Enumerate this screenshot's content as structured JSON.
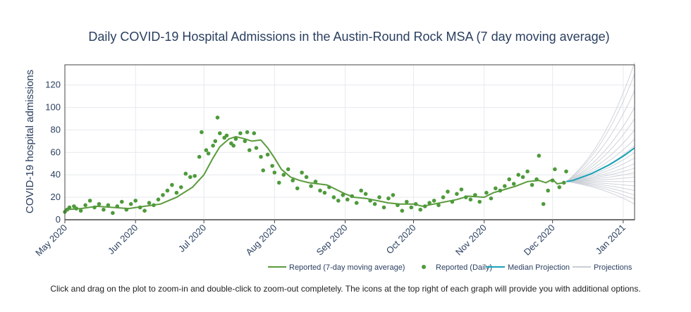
{
  "chart_data": {
    "type": "line",
    "title": "Daily COVID-19 Hospital Admissions in the Austin-Round Rock MSA (7 day moving average)",
    "ylabel": "COVID-19 hospital admissions",
    "xlabel": "",
    "x_ticks": [
      "2020-05-01",
      "2020-06-01",
      "2020-07-01",
      "2020-08-01",
      "2020-09-01",
      "2020-10-01",
      "2020-11-01",
      "2020-12-01",
      "2021-01-01"
    ],
    "x_tick_labels": [
      "May 2020",
      "Jun 2020",
      "Jul 2020",
      "Aug 2020",
      "Sep 2020",
      "Oct 2020",
      "Nov 2020",
      "Dec 2020",
      "Jan 2021"
    ],
    "xlim": [
      "2020-05-01",
      "2021-01-06"
    ],
    "y_ticks": [
      0,
      20,
      40,
      60,
      80,
      100,
      120
    ],
    "ylim": [
      0,
      138
    ],
    "grid": true,
    "legend_position": "bottom-right",
    "colors": {
      "moving_average": "#5a9b3c",
      "daily": "#4e9a3b",
      "median": "#17a2b8",
      "projections": "#c8cdd3"
    },
    "series": [
      {
        "name": "Reported (7-day moving average)",
        "type": "line",
        "points": [
          [
            "2020-05-01",
            9
          ],
          [
            "2020-05-08",
            10
          ],
          [
            "2020-05-15",
            12
          ],
          [
            "2020-05-22",
            11
          ],
          [
            "2020-05-29",
            10
          ],
          [
            "2020-06-05",
            12
          ],
          [
            "2020-06-12",
            14
          ],
          [
            "2020-06-19",
            20
          ],
          [
            "2020-06-26",
            29
          ],
          [
            "2020-07-01",
            40
          ],
          [
            "2020-07-05",
            55
          ],
          [
            "2020-07-08",
            65
          ],
          [
            "2020-07-12",
            72
          ],
          [
            "2020-07-15",
            74
          ],
          [
            "2020-07-19",
            72
          ],
          [
            "2020-07-22",
            70
          ],
          [
            "2020-07-26",
            71
          ],
          [
            "2020-07-29",
            64
          ],
          [
            "2020-08-01",
            55
          ],
          [
            "2020-08-04",
            45
          ],
          [
            "2020-08-08",
            38
          ],
          [
            "2020-08-12",
            35
          ],
          [
            "2020-08-16",
            33
          ],
          [
            "2020-08-20",
            32
          ],
          [
            "2020-08-24",
            31
          ],
          [
            "2020-08-28",
            27
          ],
          [
            "2020-09-01",
            23
          ],
          [
            "2020-09-05",
            20
          ],
          [
            "2020-09-10",
            19
          ],
          [
            "2020-09-15",
            17
          ],
          [
            "2020-09-20",
            15
          ],
          [
            "2020-09-25",
            14
          ],
          [
            "2020-10-01",
            14
          ],
          [
            "2020-10-05",
            12
          ],
          [
            "2020-10-10",
            14
          ],
          [
            "2020-10-15",
            16
          ],
          [
            "2020-10-20",
            18
          ],
          [
            "2020-10-25",
            21
          ],
          [
            "2020-11-01",
            20
          ],
          [
            "2020-11-05",
            24
          ],
          [
            "2020-11-10",
            27
          ],
          [
            "2020-11-15",
            30
          ],
          [
            "2020-11-20",
            34
          ],
          [
            "2020-11-25",
            35
          ],
          [
            "2020-11-28",
            33
          ],
          [
            "2020-12-01",
            36
          ],
          [
            "2020-12-03",
            32
          ],
          [
            "2020-12-06",
            33
          ]
        ]
      },
      {
        "name": "Reported (Daily)",
        "type": "scatter",
        "points": [
          [
            "2020-05-01",
            7
          ],
          [
            "2020-05-02",
            9
          ],
          [
            "2020-05-03",
            11
          ],
          [
            "2020-05-05",
            12
          ],
          [
            "2020-05-06",
            10
          ],
          [
            "2020-05-08",
            8
          ],
          [
            "2020-05-10",
            13
          ],
          [
            "2020-05-12",
            17
          ],
          [
            "2020-05-14",
            11
          ],
          [
            "2020-05-16",
            14
          ],
          [
            "2020-05-18",
            9
          ],
          [
            "2020-05-20",
            13
          ],
          [
            "2020-05-22",
            6
          ],
          [
            "2020-05-24",
            12
          ],
          [
            "2020-05-26",
            16
          ],
          [
            "2020-05-28",
            9
          ],
          [
            "2020-05-30",
            14
          ],
          [
            "2020-06-01",
            17
          ],
          [
            "2020-06-03",
            11
          ],
          [
            "2020-06-05",
            8
          ],
          [
            "2020-06-07",
            15
          ],
          [
            "2020-06-09",
            13
          ],
          [
            "2020-06-11",
            18
          ],
          [
            "2020-06-13",
            22
          ],
          [
            "2020-06-15",
            26
          ],
          [
            "2020-06-17",
            31
          ],
          [
            "2020-06-19",
            24
          ],
          [
            "2020-06-21",
            29
          ],
          [
            "2020-06-23",
            41
          ],
          [
            "2020-06-25",
            38
          ],
          [
            "2020-06-27",
            39
          ],
          [
            "2020-06-29",
            56
          ],
          [
            "2020-06-30",
            78
          ],
          [
            "2020-07-02",
            62
          ],
          [
            "2020-07-03",
            59
          ],
          [
            "2020-07-05",
            66
          ],
          [
            "2020-07-06",
            70
          ],
          [
            "2020-07-07",
            91
          ],
          [
            "2020-07-08",
            77
          ],
          [
            "2020-07-10",
            73
          ],
          [
            "2020-07-11",
            75
          ],
          [
            "2020-07-13",
            68
          ],
          [
            "2020-07-14",
            66
          ],
          [
            "2020-07-15",
            72
          ],
          [
            "2020-07-17",
            77
          ],
          [
            "2020-07-19",
            70
          ],
          [
            "2020-07-20",
            78
          ],
          [
            "2020-07-21",
            62
          ],
          [
            "2020-07-23",
            77
          ],
          [
            "2020-07-24",
            64
          ],
          [
            "2020-07-26",
            56
          ],
          [
            "2020-07-27",
            44
          ],
          [
            "2020-07-29",
            58
          ],
          [
            "2020-07-31",
            48
          ],
          [
            "2020-08-01",
            42
          ],
          [
            "2020-08-03",
            33
          ],
          [
            "2020-08-05",
            40
          ],
          [
            "2020-08-07",
            45
          ],
          [
            "2020-08-09",
            35
          ],
          [
            "2020-08-11",
            28
          ],
          [
            "2020-08-13",
            42
          ],
          [
            "2020-08-15",
            38
          ],
          [
            "2020-08-17",
            30
          ],
          [
            "2020-08-19",
            34
          ],
          [
            "2020-08-21",
            26
          ],
          [
            "2020-08-23",
            24
          ],
          [
            "2020-08-25",
            29
          ],
          [
            "2020-08-27",
            20
          ],
          [
            "2020-08-29",
            17
          ],
          [
            "2020-08-31",
            22
          ],
          [
            "2020-09-02",
            18
          ],
          [
            "2020-09-04",
            21
          ],
          [
            "2020-09-06",
            15
          ],
          [
            "2020-09-08",
            26
          ],
          [
            "2020-09-10",
            23
          ],
          [
            "2020-09-12",
            17
          ],
          [
            "2020-09-14",
            14
          ],
          [
            "2020-09-16",
            20
          ],
          [
            "2020-09-18",
            11
          ],
          [
            "2020-09-20",
            19
          ],
          [
            "2020-09-22",
            22
          ],
          [
            "2020-09-24",
            13
          ],
          [
            "2020-09-26",
            8
          ],
          [
            "2020-09-28",
            16
          ],
          [
            "2020-09-30",
            11
          ],
          [
            "2020-10-02",
            14
          ],
          [
            "2020-10-04",
            9
          ],
          [
            "2020-10-06",
            12
          ],
          [
            "2020-10-08",
            15
          ],
          [
            "2020-10-10",
            17
          ],
          [
            "2020-10-12",
            13
          ],
          [
            "2020-10-14",
            20
          ],
          [
            "2020-10-16",
            25
          ],
          [
            "2020-10-18",
            16
          ],
          [
            "2020-10-20",
            23
          ],
          [
            "2020-10-22",
            27
          ],
          [
            "2020-10-24",
            20
          ],
          [
            "2020-10-26",
            18
          ],
          [
            "2020-10-28",
            22
          ],
          [
            "2020-10-30",
            16
          ],
          [
            "2020-11-02",
            24
          ],
          [
            "2020-11-04",
            19
          ],
          [
            "2020-11-06",
            28
          ],
          [
            "2020-11-08",
            26
          ],
          [
            "2020-11-10",
            30
          ],
          [
            "2020-11-12",
            36
          ],
          [
            "2020-11-14",
            32
          ],
          [
            "2020-11-16",
            40
          ],
          [
            "2020-11-18",
            38
          ],
          [
            "2020-11-20",
            43
          ],
          [
            "2020-11-22",
            31
          ],
          [
            "2020-11-24",
            36
          ],
          [
            "2020-11-25",
            57
          ],
          [
            "2020-11-27",
            14
          ],
          [
            "2020-11-29",
            26
          ],
          [
            "2020-12-01",
            35
          ],
          [
            "2020-12-02",
            45
          ],
          [
            "2020-12-04",
            29
          ],
          [
            "2020-12-06",
            33
          ],
          [
            "2020-12-07",
            43
          ]
        ]
      },
      {
        "name": "Median Projection",
        "type": "line",
        "points": [
          [
            "2020-12-07",
            34
          ],
          [
            "2020-12-10",
            35
          ],
          [
            "2020-12-14",
            38
          ],
          [
            "2020-12-18",
            41
          ],
          [
            "2020-12-22",
            45
          ],
          [
            "2020-12-26",
            49
          ],
          [
            "2020-12-30",
            54
          ],
          [
            "2021-01-02",
            58
          ],
          [
            "2021-01-06",
            64
          ]
        ]
      },
      {
        "name": "Projections",
        "type": "line_ensemble",
        "start": [
          "2020-12-07",
          34
        ],
        "end_values": [
          14,
          18,
          22,
          26,
          30,
          34,
          38,
          42,
          46,
          50,
          55,
          60,
          66,
          72,
          80,
          90,
          100,
          115,
          130,
          140
        ]
      }
    ]
  },
  "footnote": "Click and drag on the plot to zoom-in and double-click to zoom-out completely. The icons at the top right of each graph will provide you with additional options."
}
